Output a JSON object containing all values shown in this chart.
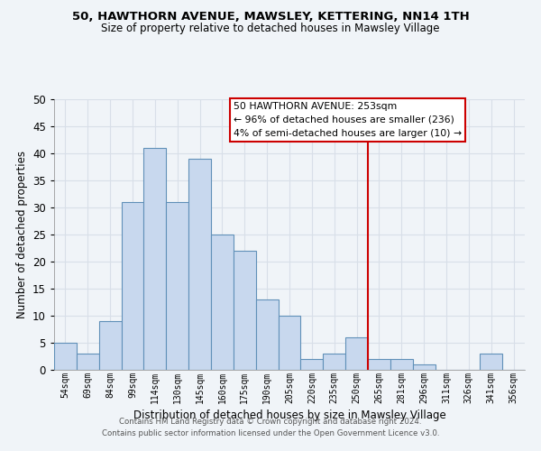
{
  "title": "50, HAWTHORN AVENUE, MAWSLEY, KETTERING, NN14 1TH",
  "subtitle": "Size of property relative to detached houses in Mawsley Village",
  "xlabel": "Distribution of detached houses by size in Mawsley Village",
  "ylabel": "Number of detached properties",
  "bin_labels": [
    "54sqm",
    "69sqm",
    "84sqm",
    "99sqm",
    "114sqm",
    "130sqm",
    "145sqm",
    "160sqm",
    "175sqm",
    "190sqm",
    "205sqm",
    "220sqm",
    "235sqm",
    "250sqm",
    "265sqm",
    "281sqm",
    "296sqm",
    "311sqm",
    "326sqm",
    "341sqm",
    "356sqm"
  ],
  "bin_values": [
    5,
    3,
    9,
    31,
    41,
    31,
    39,
    25,
    22,
    13,
    10,
    2,
    3,
    6,
    2,
    2,
    1,
    0,
    0,
    3,
    0
  ],
  "bar_color": "#c8d8ee",
  "bar_edge_color": "#6090b8",
  "vline_x_index": 13,
  "vline_color": "#cc0000",
  "ylim": [
    0,
    50
  ],
  "yticks": [
    0,
    5,
    10,
    15,
    20,
    25,
    30,
    35,
    40,
    45,
    50
  ],
  "annotation_title": "50 HAWTHORN AVENUE: 253sqm",
  "annotation_line1": "← 96% of detached houses are smaller (236)",
  "annotation_line2": "4% of semi-detached houses are larger (10) →",
  "annotation_box_color": "#ffffff",
  "annotation_box_edge": "#cc0000",
  "footer1": "Contains HM Land Registry data © Crown copyright and database right 2024.",
  "footer2": "Contains public sector information licensed under the Open Government Licence v3.0.",
  "background_color": "#f0f4f8",
  "grid_color": "#d8dfe8"
}
